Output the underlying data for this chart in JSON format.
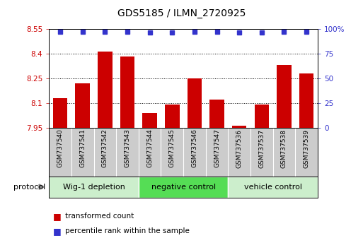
{
  "title": "GDS5185 / ILMN_2720925",
  "samples": [
    "GSM737540",
    "GSM737541",
    "GSM737542",
    "GSM737543",
    "GSM737544",
    "GSM737545",
    "GSM737546",
    "GSM737547",
    "GSM737536",
    "GSM737537",
    "GSM737538",
    "GSM737539"
  ],
  "bar_values": [
    8.13,
    8.22,
    8.41,
    8.38,
    8.04,
    8.09,
    8.25,
    8.12,
    7.96,
    8.09,
    8.33,
    8.28
  ],
  "percentile_values": [
    97,
    97,
    97,
    97,
    96,
    96,
    97,
    97,
    96,
    96,
    97,
    97
  ],
  "bar_color": "#cc0000",
  "percentile_color": "#3333cc",
  "ylim_left": [
    7.95,
    8.55
  ],
  "ylim_right": [
    0,
    100
  ],
  "yticks_left": [
    7.95,
    8.1,
    8.25,
    8.4,
    8.55
  ],
  "yticks_left_labels": [
    "7.95",
    "8.1",
    "8.25",
    "8.4",
    "8.55"
  ],
  "yticks_right": [
    0,
    25,
    50,
    75,
    100
  ],
  "yticks_right_labels": [
    "0",
    "25",
    "50",
    "75",
    "100%"
  ],
  "groups": [
    {
      "label": "Wig-1 depletion",
      "start": 0,
      "end": 3,
      "color": "#cceecc"
    },
    {
      "label": "negative control",
      "start": 4,
      "end": 7,
      "color": "#55dd55"
    },
    {
      "label": "vehicle control",
      "start": 8,
      "end": 11,
      "color": "#cceecc"
    }
  ],
  "protocol_label": "protocol",
  "legend_bar_label": "transformed count",
  "legend_pct_label": "percentile rank within the sample",
  "background_color": "#ffffff",
  "label_box_color": "#cccccc",
  "title_fontsize": 10
}
